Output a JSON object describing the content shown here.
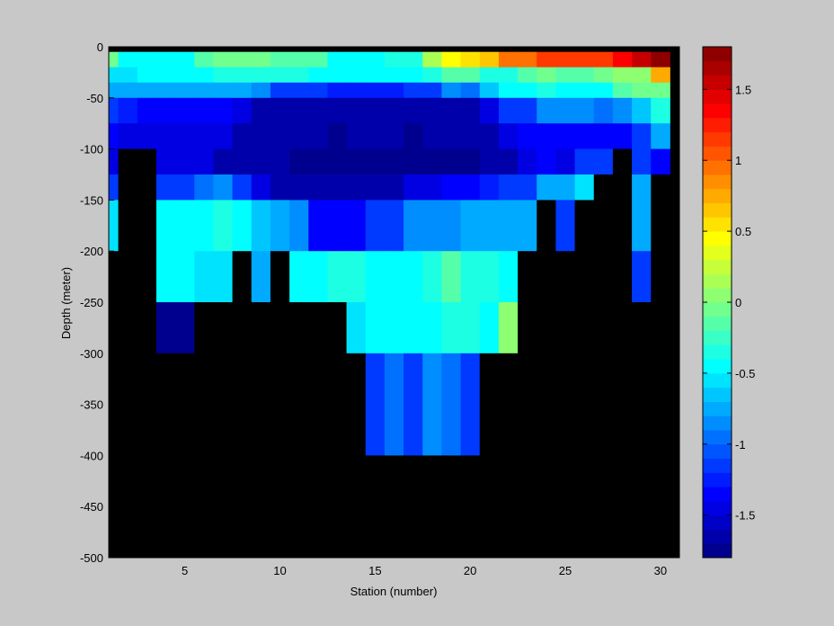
{
  "chart_data": {
    "type": "heatmap",
    "xlabel": "Station (number)",
    "ylabel": "Depth (meter)",
    "xlim": [
      1,
      31
    ],
    "ylim": [
      -500,
      0
    ],
    "x_ticks": [
      5,
      10,
      15,
      20,
      25,
      30
    ],
    "y_ticks": [
      0,
      -50,
      -100,
      -150,
      -200,
      -250,
      -300,
      -350,
      -400,
      -450,
      -500
    ],
    "colorbar": {
      "range": [
        -1.8,
        1.8
      ],
      "ticks": [
        1.5,
        1,
        0.5,
        0,
        -0.5,
        -1,
        -1.5
      ],
      "colormap": "jet-like"
    },
    "nodata_color": "#000000",
    "stations": [
      1,
      2,
      3,
      4,
      5,
      6,
      7,
      8,
      9,
      10,
      11,
      12,
      13,
      14,
      15,
      16,
      17,
      18,
      19,
      20,
      21,
      22,
      23,
      24,
      25,
      26,
      27,
      28,
      29,
      30
    ],
    "depth_rows": [
      {
        "from": 0,
        "to": -5
      },
      {
        "from": -5,
        "to": -20
      },
      {
        "from": -20,
        "to": -35
      },
      {
        "from": -35,
        "to": -50
      },
      {
        "from": -50,
        "to": -75
      },
      {
        "from": -75,
        "to": -100
      },
      {
        "from": -100,
        "to": -125
      },
      {
        "from": -125,
        "to": -150
      },
      {
        "from": -150,
        "to": -200
      },
      {
        "from": -200,
        "to": -250
      },
      {
        "from": -250,
        "to": -300
      },
      {
        "from": -300,
        "to": -400
      },
      {
        "from": -400,
        "to": -500
      }
    ],
    "values": [
      [
        null,
        null,
        null,
        null,
        null,
        null,
        null,
        null,
        null,
        null,
        null,
        null,
        null,
        null,
        null,
        null,
        null,
        null,
        null,
        null,
        null,
        null,
        null,
        null,
        null,
        null,
        null,
        null,
        null,
        null
      ],
      [
        -0.1,
        -0.4,
        -0.4,
        -0.4,
        -0.4,
        -0.2,
        -0.1,
        -0.1,
        -0.1,
        -0.2,
        -0.2,
        -0.2,
        -0.4,
        -0.4,
        -0.4,
        -0.3,
        -0.3,
        0.1,
        0.4,
        0.5,
        0.6,
        1.0,
        1.0,
        1.1,
        1.1,
        1.2,
        1.2,
        1.3,
        1.5,
        1.7
      ],
      [
        -0.6,
        -0.6,
        -0.5,
        -0.5,
        -0.5,
        -0.4,
        -0.3,
        -0.3,
        -0.3,
        -0.3,
        -0.3,
        -0.4,
        -0.5,
        -0.5,
        -0.5,
        -0.5,
        -0.4,
        -0.3,
        -0.2,
        -0.2,
        -0.3,
        -0.3,
        -0.2,
        -0.1,
        -0.2,
        -0.2,
        -0.1,
        0.0,
        0.0,
        0.7
      ],
      [
        -0.8,
        -0.8,
        -0.8,
        -0.8,
        -0.8,
        -0.8,
        -0.8,
        -0.8,
        -0.9,
        -1.1,
        -1.2,
        -1.2,
        -1.3,
        -1.3,
        -1.3,
        -1.3,
        -1.2,
        -1.1,
        -0.9,
        -1.0,
        -0.7,
        -0.5,
        -0.4,
        -0.3,
        -0.4,
        -0.4,
        -0.5,
        -0.2,
        -0.1,
        -0.1
      ],
      [
        -1.2,
        -1.3,
        -1.4,
        -1.4,
        -1.4,
        -1.4,
        -1.4,
        -1.5,
        -1.6,
        -1.6,
        -1.6,
        -1.6,
        -1.7,
        -1.7,
        -1.7,
        -1.7,
        -1.7,
        -1.7,
        -1.6,
        -1.6,
        -1.5,
        -1.2,
        -1.1,
        -0.9,
        -0.9,
        -0.9,
        -1.0,
        -0.9,
        -0.7,
        -0.3
      ],
      [
        -1.4,
        -1.5,
        -1.5,
        -1.5,
        -1.5,
        -1.5,
        -1.5,
        -1.6,
        -1.7,
        -1.7,
        -1.7,
        -1.7,
        -1.8,
        -1.7,
        -1.7,
        -1.7,
        -1.8,
        -1.7,
        -1.7,
        -1.6,
        -1.6,
        -1.5,
        -1.4,
        -1.4,
        -1.4,
        -1.4,
        -1.4,
        -1.4,
        -1.2,
        -0.8
      ],
      [
        -1.5,
        null,
        null,
        -1.5,
        -1.5,
        -1.5,
        -1.6,
        -1.6,
        -1.7,
        -1.7,
        -1.8,
        -1.8,
        -1.8,
        -1.8,
        -1.9,
        -1.9,
        -1.9,
        -1.9,
        -1.8,
        -1.8,
        -1.6,
        -1.6,
        -1.5,
        -1.4,
        -1.5,
        -1.2,
        -1.2,
        null,
        -1.1,
        -1.4
      ],
      [
        -1.2,
        null,
        null,
        -1.1,
        -1.1,
        -1.0,
        -0.9,
        -1.2,
        -1.5,
        -1.6,
        -1.6,
        -1.7,
        -1.7,
        -1.7,
        -1.6,
        -1.6,
        -1.5,
        -1.5,
        -1.4,
        -1.4,
        -1.3,
        -1.2,
        -1.1,
        -0.8,
        -0.8,
        -0.6,
        null,
        null,
        -0.8,
        null
      ],
      [
        -0.6,
        null,
        null,
        -0.5,
        -0.5,
        -0.4,
        -0.3,
        -0.5,
        -0.7,
        -0.8,
        -0.9,
        -1.4,
        -1.4,
        -1.4,
        -1.2,
        -1.1,
        -0.9,
        -0.9,
        -0.9,
        -0.8,
        -0.8,
        -0.8,
        -0.8,
        null,
        -1.1,
        null,
        null,
        null,
        -0.8,
        null
      ],
      [
        null,
        null,
        null,
        -0.5,
        -0.5,
        -0.6,
        -0.6,
        null,
        -0.8,
        null,
        -0.5,
        -0.5,
        -0.3,
        -0.3,
        -0.4,
        -0.4,
        -0.4,
        -0.3,
        -0.2,
        -0.3,
        -0.3,
        -0.5,
        null,
        null,
        null,
        null,
        null,
        null,
        -1.2,
        null
      ],
      [
        null,
        null,
        null,
        -1.8,
        -1.8,
        null,
        null,
        null,
        null,
        null,
        null,
        null,
        null,
        -0.6,
        -0.5,
        -0.4,
        -0.4,
        -0.4,
        -0.3,
        -0.3,
        -0.4,
        0.0,
        null,
        null,
        null,
        null,
        null,
        null,
        null,
        null
      ],
      [
        null,
        null,
        null,
        null,
        null,
        null,
        null,
        null,
        null,
        null,
        null,
        null,
        null,
        null,
        -1.1,
        -1.0,
        -1.1,
        -0.9,
        -1.0,
        -1.1,
        null,
        null,
        null,
        null,
        null,
        null,
        null,
        null,
        null,
        null
      ],
      [
        null,
        null,
        null,
        null,
        null,
        null,
        null,
        null,
        null,
        null,
        null,
        null,
        null,
        null,
        null,
        null,
        null,
        null,
        null,
        null,
        null,
        null,
        null,
        null,
        null,
        null,
        null,
        null,
        null,
        null
      ]
    ]
  }
}
